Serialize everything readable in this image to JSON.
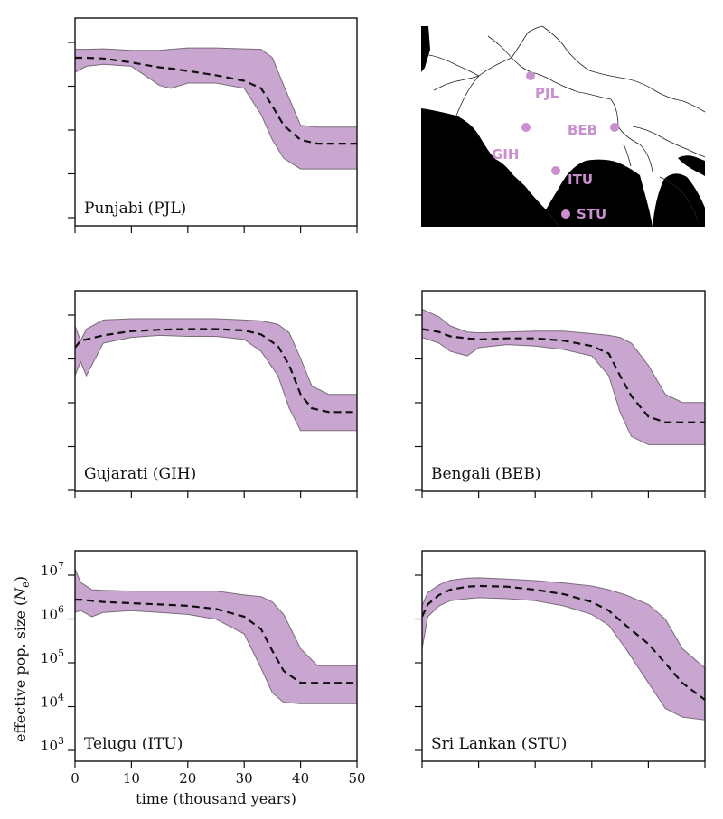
{
  "colors": {
    "band": "#c9a6cf",
    "band_edge": "#7a6a7a",
    "median": "#111111",
    "map_land": "#ffffff",
    "map_sea": "#000000",
    "map_marker": "#c98fce"
  },
  "chart_data": [
    {
      "type": "area",
      "panel_label": "Punjabi (PJL)",
      "x": [
        0,
        2,
        5,
        10,
        15,
        17,
        20,
        25,
        30,
        33,
        35,
        37,
        40,
        43,
        46,
        50
      ],
      "median": [
        3000000,
        3000000,
        2900000,
        2400000,
        1900000,
        1800000,
        1600000,
        1300000,
        1000000,
        700000,
        300000,
        120000,
        60000,
        50000,
        50000,
        50000
      ],
      "lower": [
        1500000,
        2000000,
        2200000,
        2000000,
        800000,
        700000,
        900000,
        900000,
        700000,
        200000,
        60000,
        25000,
        15000,
        15000,
        15000,
        15000
      ],
      "upper": [
        4500000,
        4500000,
        4600000,
        4300000,
        4300000,
        4500000,
        4800000,
        4800000,
        4600000,
        4500000,
        3000000,
        800000,
        120000,
        110000,
        110000,
        110000
      ],
      "xlim": [
        0,
        50
      ],
      "ylim_log10": [
        3,
        7.3
      ]
    },
    {
      "type": "area",
      "panel_label": "Gujarati (GIH)",
      "x": [
        0,
        1,
        2,
        5,
        10,
        15,
        20,
        25,
        30,
        33,
        36,
        38,
        40,
        42,
        45,
        50
      ],
      "median": [
        1200000,
        1700000,
        1800000,
        2200000,
        2700000,
        2900000,
        3000000,
        3000000,
        2800000,
        2300000,
        1300000,
        500000,
        120000,
        60000,
        50000,
        50000
      ],
      "lower": [
        300000,
        600000,
        300000,
        1500000,
        2000000,
        2200000,
        2100000,
        2100000,
        1800000,
        1000000,
        300000,
        60000,
        20000,
        20000,
        20000,
        20000
      ],
      "upper": [
        3500000,
        1700000,
        3000000,
        4700000,
        5000000,
        5000000,
        5000000,
        5000000,
        4700000,
        4500000,
        3800000,
        2500000,
        700000,
        180000,
        120000,
        120000
      ],
      "xlim": [
        0,
        50
      ],
      "ylim_log10": [
        3,
        7.3
      ]
    },
    {
      "type": "area",
      "panel_label": "Bengali (BEB)",
      "x": [
        0,
        3,
        5,
        8,
        10,
        15,
        20,
        25,
        30,
        33,
        35,
        37,
        40,
        43,
        46,
        50
      ],
      "median": [
        3000000,
        2600000,
        2100000,
        1900000,
        1800000,
        1900000,
        1900000,
        1700000,
        1300000,
        900000,
        300000,
        110000,
        40000,
        30000,
        30000,
        30000
      ],
      "lower": [
        2000000,
        1500000,
        1000000,
        800000,
        1200000,
        1400000,
        1300000,
        1100000,
        800000,
        300000,
        50000,
        15000,
        10000,
        10000,
        10000,
        10000
      ],
      "upper": [
        8000000,
        5500000,
        3500000,
        2600000,
        2500000,
        2600000,
        2700000,
        2700000,
        2400000,
        2200000,
        2000000,
        1500000,
        500000,
        120000,
        80000,
        80000
      ],
      "xlim": [
        0,
        50
      ],
      "ylim_log10": [
        3,
        7.3
      ]
    },
    {
      "type": "area",
      "panel_label": "Telugu (ITU)",
      "x": [
        0,
        1,
        3,
        5,
        10,
        15,
        20,
        25,
        30,
        33,
        35,
        37,
        40,
        43,
        46,
        50
      ],
      "median": [
        2000000,
        2000000,
        1900000,
        1800000,
        1700000,
        1600000,
        1500000,
        1300000,
        900000,
        500000,
        180000,
        70000,
        40000,
        40000,
        40000,
        40000
      ],
      "lower": [
        1100000,
        1200000,
        900000,
        1100000,
        1200000,
        1100000,
        1000000,
        800000,
        400000,
        80000,
        25000,
        16000,
        15000,
        15000,
        15000,
        15000
      ],
      "upper": [
        8500000,
        4500000,
        3200000,
        3100000,
        3000000,
        3000000,
        3000000,
        3000000,
        2500000,
        2300000,
        1800000,
        1000000,
        200000,
        90000,
        90000,
        90000
      ],
      "xlim": [
        0,
        50
      ],
      "ylim_log10": [
        3,
        7.3
      ]
    },
    {
      "type": "area",
      "panel_label": "Sri Lankan (STU)",
      "x": [
        0,
        1,
        3,
        5,
        8,
        10,
        15,
        20,
        25,
        30,
        33,
        36,
        40,
        43,
        46,
        50
      ],
      "median": [
        900000,
        1600000,
        2500000,
        3200000,
        3700000,
        3800000,
        3700000,
        3200000,
        2600000,
        1800000,
        1200000,
        600000,
        250000,
        100000,
        40000,
        18000
      ],
      "lower": [
        200000,
        900000,
        1500000,
        1900000,
        2100000,
        2200000,
        2100000,
        1900000,
        1500000,
        1000000,
        600000,
        200000,
        40000,
        12000,
        8000,
        7000
      ],
      "upper": [
        1500000,
        2800000,
        4000000,
        5000000,
        5500000,
        5600000,
        5300000,
        4900000,
        4400000,
        3800000,
        3200000,
        2500000,
        1600000,
        800000,
        200000,
        80000
      ],
      "xlim": [
        0,
        50
      ],
      "ylim_log10": [
        3,
        7.3
      ]
    }
  ],
  "axes": {
    "ylabel_main": "effective pop. size (",
    "ylabel_var": "N",
    "ylabel_sub": "e",
    "ylabel_close": ")",
    "xlabel": "time (thousand years)",
    "xticks": [
      "0",
      "10",
      "20",
      "30",
      "40",
      "50"
    ],
    "yticks": [
      {
        "base": "10",
        "exp": "7"
      },
      {
        "base": "10",
        "exp": "6"
      },
      {
        "base": "10",
        "exp": "5"
      },
      {
        "base": "10",
        "exp": "4"
      },
      {
        "base": "10",
        "exp": "3"
      }
    ]
  },
  "map": {
    "labels": [
      "PJL",
      "BEB",
      "GIH",
      "ITU",
      "STU"
    ]
  }
}
